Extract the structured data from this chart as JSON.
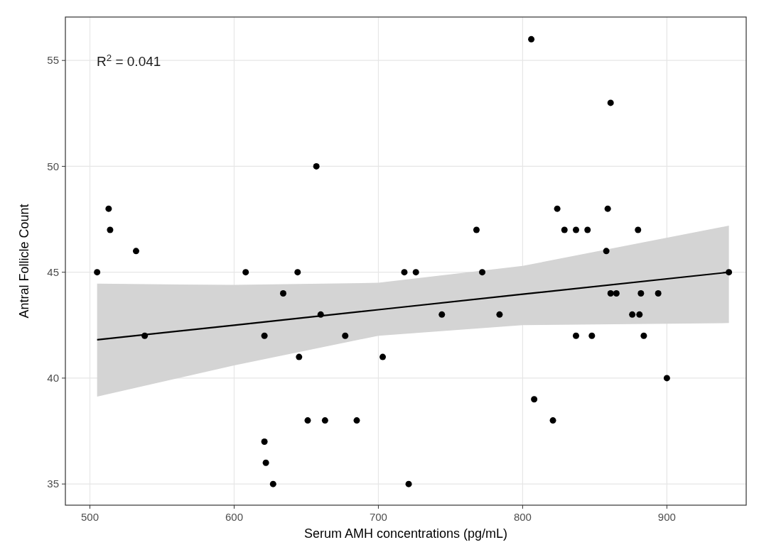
{
  "chart_data": {
    "type": "scatter",
    "xlabel": "Serum AMH concentrations (pg/mL)",
    "ylabel": "Antral Follicle Count",
    "annotations": [
      "R$^{2}$ = 0.041"
    ],
    "xlim": [
      483,
      955
    ],
    "ylim": [
      34,
      57.05
    ],
    "xticks": [
      500,
      600,
      700,
      800,
      900
    ],
    "yticks": [
      35,
      40,
      45,
      50,
      55
    ],
    "grid": true,
    "series": [
      {
        "type": "line",
        "color": "#000000",
        "x": [
          505,
          600,
          700,
          800,
          943
        ],
        "values": [
          41.81,
          42.5,
          43.23,
          43.96,
          45.0
        ],
        "lower": [
          39.13,
          40.6,
          42.0,
          42.5,
          42.6
        ],
        "upper": [
          44.46,
          44.4,
          44.5,
          45.3,
          47.2
        ]
      },
      {
        "color": "#000000",
        "marker": "circle",
        "x": [
          513,
          514,
          532,
          657,
          806,
          861,
          824,
          859,
          768,
          829,
          837,
          845,
          880,
          858,
          505,
          608,
          644,
          718,
          726,
          772,
          943,
          634,
          660,
          538,
          621,
          677,
          645,
          703,
          651,
          663,
          685,
          621,
          622,
          627,
          721,
          744,
          784,
          861,
          865,
          882,
          894,
          876,
          881,
          837,
          848,
          884,
          900,
          808,
          821
        ],
        "values": [
          48,
          47,
          46,
          50,
          56,
          53,
          48,
          48,
          47,
          47,
          47,
          47,
          47,
          46,
          45,
          45,
          45,
          45,
          45,
          45,
          45,
          44,
          43,
          42,
          42,
          42,
          41,
          41,
          38,
          38,
          38,
          37,
          36,
          35,
          35,
          43,
          43,
          44,
          44,
          44,
          44,
          43,
          43,
          42,
          42,
          42,
          40,
          39,
          38
        ]
      }
    ]
  }
}
